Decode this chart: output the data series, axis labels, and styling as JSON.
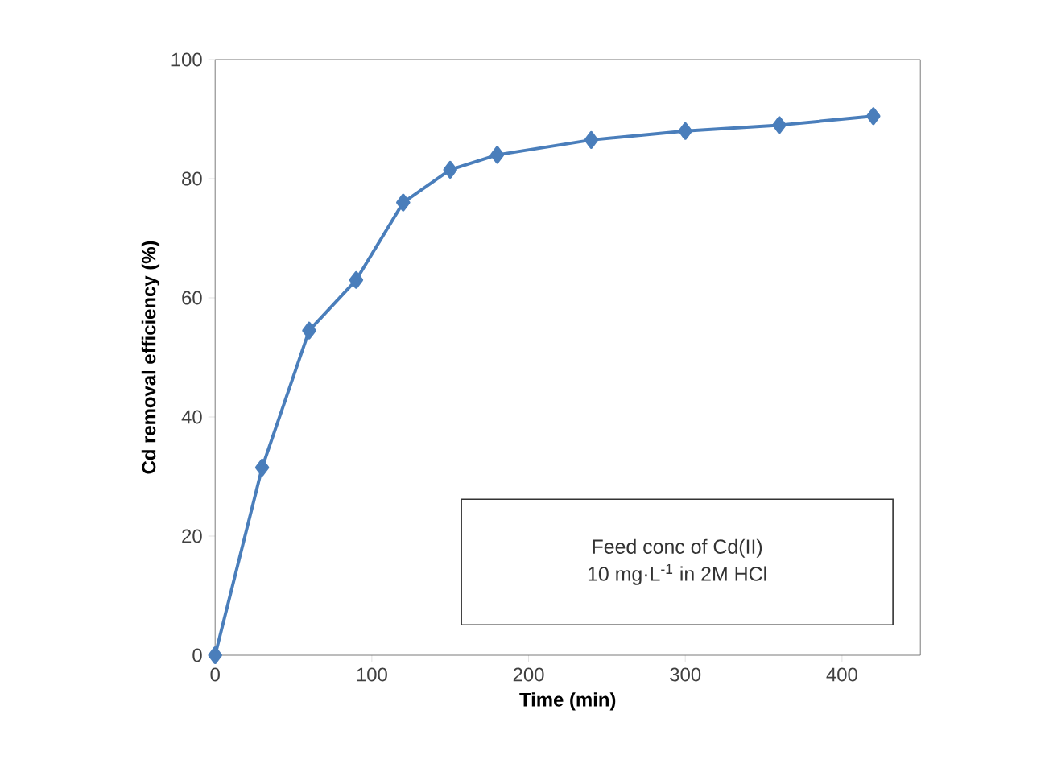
{
  "chart_data": {
    "type": "line",
    "xlabel": "Time (min)",
    "ylabel": "Cd removal efficiency (%)",
    "x": [
      0,
      30,
      60,
      90,
      120,
      150,
      180,
      240,
      300,
      360,
      420
    ],
    "series": [
      {
        "color": "#4a7ebb",
        "values": [
          0,
          31.5,
          54.5,
          63,
          76,
          81.5,
          84,
          86.5,
          88,
          89,
          90.5
        ]
      }
    ],
    "xlim": [
      0,
      450
    ],
    "xticks": [
      0,
      100,
      200,
      300,
      400
    ],
    "ylim": [
      0,
      100
    ],
    "yticks": [
      0,
      20,
      40,
      60,
      80,
      100
    ],
    "marker": "diamond",
    "line_style": "solid",
    "grid": false,
    "annotations": [
      "Feed conc of Cd(II)",
      "10 mg·L$^{-1}$ in 2M HCl"
    ]
  }
}
